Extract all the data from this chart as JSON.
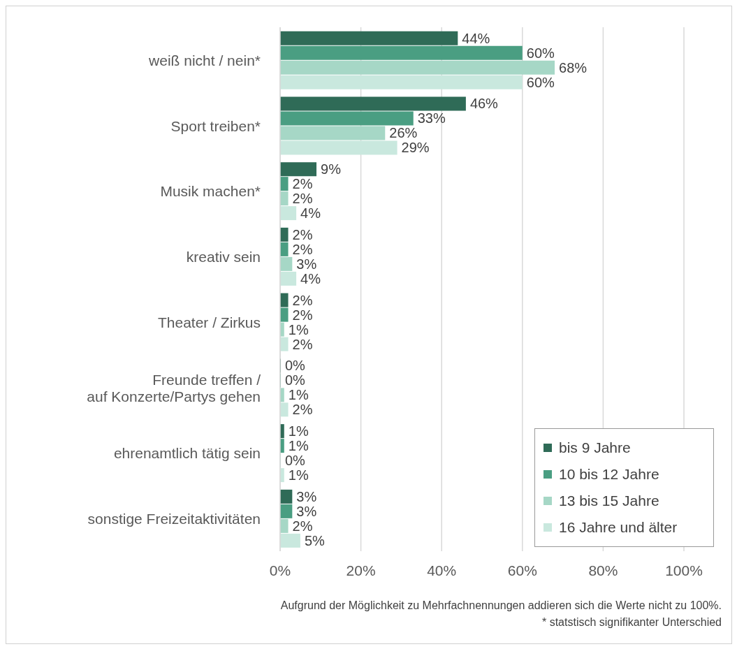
{
  "chart_data": {
    "type": "bar",
    "orientation": "horizontal",
    "categories": [
      "weiß nicht / nein*",
      "Sport treiben*",
      "Musik machen*",
      "kreativ sein",
      "Theater / Zirkus",
      "Freunde treffen /\nauf Konzerte/Partys gehen",
      "ehrenamtlich tätig sein",
      "sonstige Freizeitaktivitäten"
    ],
    "series": [
      {
        "name": "bis 9 Jahre",
        "color": "#2f6b57",
        "values": [
          44,
          46,
          9,
          2,
          2,
          0,
          1,
          3
        ],
        "value_labels": [
          "44%",
          "46%",
          "9%",
          "2%",
          "2%",
          "0%",
          "1%",
          "3%"
        ]
      },
      {
        "name": "10 bis 12 Jahre",
        "color": "#4a9e82",
        "values": [
          60,
          33,
          2,
          2,
          2,
          0,
          1,
          3
        ],
        "value_labels": [
          "60%",
          "33%",
          "2%",
          "2%",
          "2%",
          "0%",
          "1%",
          "3%"
        ]
      },
      {
        "name": "13 bis 15 Jahre",
        "color": "#a6d7c6",
        "values": [
          68,
          26,
          2,
          3,
          1,
          1,
          0,
          2
        ],
        "value_labels": [
          "68%",
          "26%",
          "2%",
          "3%",
          "1%",
          "1%",
          "0%",
          "2%"
        ]
      },
      {
        "name": "16 Jahre und älter",
        "color": "#c9e8de",
        "values": [
          60,
          29,
          4,
          4,
          2,
          2,
          1,
          5
        ],
        "value_labels": [
          "60%",
          "29%",
          "4%",
          "4%",
          "2%",
          "2%",
          "1%",
          "5%"
        ]
      }
    ],
    "xlim": [
      0,
      100
    ],
    "xticks": [
      {
        "value": 0,
        "label": "0%"
      },
      {
        "value": 20,
        "label": "20%"
      },
      {
        "value": 40,
        "label": "40%"
      },
      {
        "value": 60,
        "label": "60%"
      },
      {
        "value": 80,
        "label": "80%"
      },
      {
        "value": 100,
        "label": "100%"
      }
    ],
    "grid": "x",
    "legend": "bottom right",
    "annotations": [
      "Aufgrund der Möglichkeit zu Mehrfachnennungen addieren sich die Werte nicht zu 100%.",
      "* statstisch signifikanter Unterschied"
    ]
  }
}
